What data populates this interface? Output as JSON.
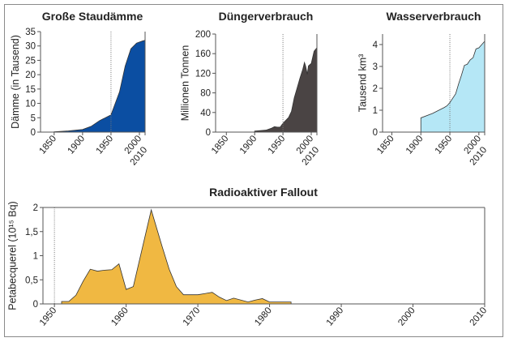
{
  "chart_data": [
    {
      "type": "area",
      "title": "Große Staudämme",
      "ylabel": "Dämme (in Tausend)",
      "color": "#0b4ea2",
      "xlim": [
        1826,
        2010
      ],
      "ylim": [
        0,
        35
      ],
      "xticks": [
        "1850",
        "1900",
        "1950",
        "2000",
        "2010"
      ],
      "yticks": [
        "0",
        "5",
        "10",
        "15",
        "20",
        "25",
        "30",
        "35"
      ],
      "marker_year": 1950,
      "x": [
        1850,
        1875,
        1900,
        1915,
        1930,
        1950,
        1965,
        1975,
        1985,
        1995,
        2005,
        2010
      ],
      "y": [
        0.1,
        0.4,
        0.9,
        2,
        4,
        6,
        14,
        23,
        29,
        31,
        31.7,
        32
      ]
    },
    {
      "type": "area",
      "title": "Düngerverbrauch",
      "ylabel": "Millionen Tonnen",
      "color": "#4a4444",
      "xlim": [
        1831,
        2010
      ],
      "ylim": [
        0,
        200
      ],
      "xticks": [
        "1850",
        "1900",
        "1950",
        "2000",
        "2010"
      ],
      "yticks": [
        "0",
        "40",
        "80",
        "120",
        "160",
        "200"
      ],
      "marker_year": 1950,
      "x": [
        1900,
        1920,
        1930,
        1935,
        1940,
        1945,
        1950,
        1960,
        1965,
        1970,
        1975,
        1980,
        1985,
        1988,
        1990,
        1993,
        1995,
        2000,
        2005,
        2010
      ],
      "y": [
        2,
        4,
        8,
        11,
        10,
        10,
        18,
        30,
        42,
        70,
        90,
        110,
        128,
        142,
        135,
        118,
        135,
        140,
        165,
        172
      ]
    },
    {
      "type": "area",
      "title": "Wasserverbrauch",
      "ylabel": "Tausend km³",
      "color": "#b5e7f6",
      "xlim": [
        1834,
        2010
      ],
      "ylim": [
        0,
        4.48
      ],
      "xticks": [
        "1850",
        "1900",
        "1950",
        "2000",
        "2010"
      ],
      "yticks": [
        "0",
        "1",
        "2",
        "3",
        "4"
      ],
      "marker_year": 1950,
      "x": [
        1900,
        1920,
        1940,
        1945,
        1950,
        1960,
        1965,
        1970,
        1975,
        1980,
        1985,
        1990,
        1995,
        2000,
        2005,
        2010
      ],
      "y": [
        0.65,
        0.85,
        1.12,
        1.2,
        1.35,
        1.75,
        2.2,
        2.6,
        3.05,
        3.1,
        3.3,
        3.4,
        3.8,
        3.85,
        4.0,
        4.15
      ]
    },
    {
      "type": "area",
      "title": "Radioaktiver Fallout",
      "ylabel": "Petabecquerel (10¹⁵ Bq)",
      "color": "#f0b842",
      "xlim": [
        1948.4,
        2010
      ],
      "ylim": [
        0,
        2
      ],
      "xticks": [
        "1950",
        "1960",
        "1970",
        "1980",
        "1990",
        "2000",
        "2010"
      ],
      "yticks": [
        "0",
        "0,5",
        "1",
        "1,5",
        "2"
      ],
      "marker_year": 1950,
      "x": [
        1951,
        1952,
        1953,
        1954,
        1955,
        1956,
        1957,
        1958,
        1959,
        1960,
        1961,
        1963.5,
        1965,
        1966,
        1967,
        1968,
        1970,
        1972,
        1973,
        1974,
        1975,
        1977,
        1978,
        1979,
        1980,
        1983
      ],
      "y": [
        0.05,
        0.05,
        0.18,
        0.47,
        0.72,
        0.68,
        0.7,
        0.71,
        0.83,
        0.3,
        0.36,
        1.95,
        1.2,
        0.72,
        0.36,
        0.19,
        0.19,
        0.24,
        0.14,
        0.07,
        0.12,
        0.04,
        0.08,
        0.11,
        0.04,
        0.04
      ]
    }
  ]
}
